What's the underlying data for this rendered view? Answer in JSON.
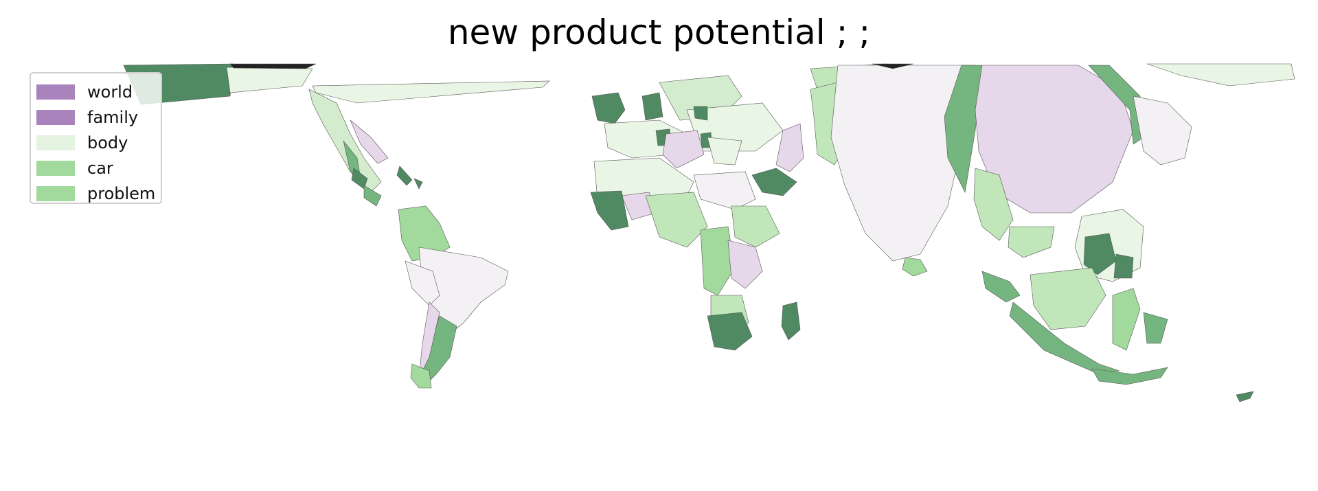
{
  "title": "new product potential ; ;",
  "legend": [
    {
      "label": "world",
      "color": "#a883bc"
    },
    {
      "label": "family",
      "color": "#a883bc"
    },
    {
      "label": "body",
      "color": "#e4f4e0"
    },
    {
      "label": "car",
      "color": "#a2d99c"
    },
    {
      "label": "problem",
      "color": "#a2d99c"
    }
  ],
  "colors": {
    "dark_green": "#4f8a62",
    "mid_green": "#75b57f",
    "light_green": "#c0e6b9",
    "pale_green": "#e9f5e5",
    "pale_purple": "#efe7f1",
    "light_purple": "#e6d7ea",
    "near_white": "#f3f1f4"
  }
}
